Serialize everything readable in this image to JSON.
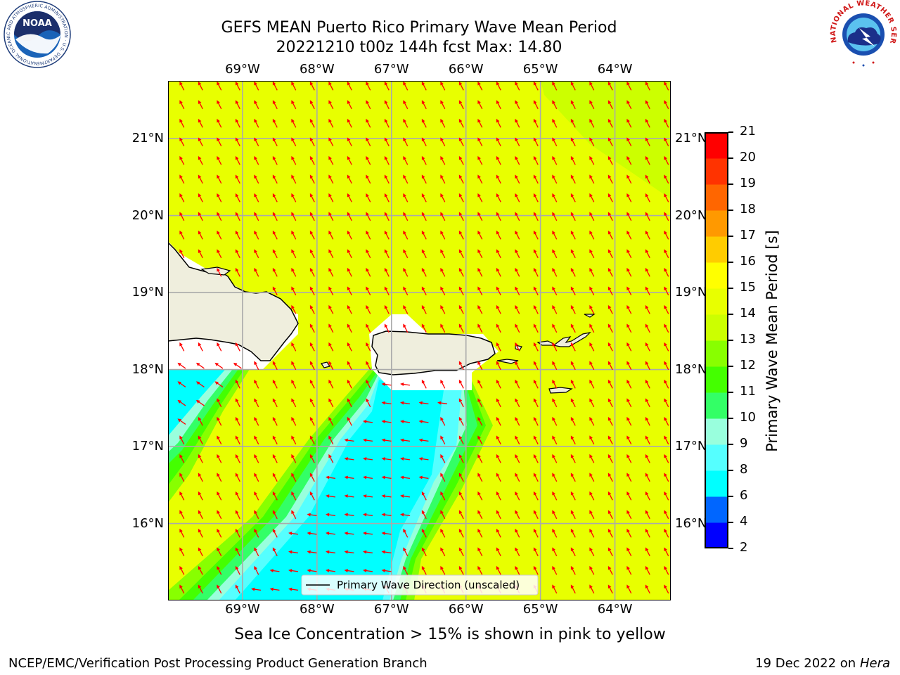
{
  "title": {
    "line1": "GEFS MEAN Puerto Rico Primary Wave Mean Period",
    "line2": "20221210 t00z 144h fcst   Max: 14.80"
  },
  "map": {
    "lon_labels": [
      "69°W",
      "68°W",
      "67°W",
      "66°W",
      "65°W",
      "64°W"
    ],
    "lat_labels": [
      "21°N",
      "20°N",
      "19°N",
      "18°N",
      "17°N",
      "16°N"
    ],
    "lon_range": [
      -70.0,
      -63.25
    ],
    "lat_range": [
      15.0,
      21.75
    ],
    "field_colors": {
      "land": "#efeedd",
      "open_ocean": "#e8ff00",
      "band_13_14": "#ccff00",
      "band_12_13": "#88ff00",
      "band_11_12": "#44ff00",
      "band_10_11": "#33ff66",
      "band_9_10": "#99ffdd",
      "band_8_9": "#55ffff",
      "band_6_8": "#00ffff"
    },
    "arrow_color": "#ff0000",
    "legend_label": "Primary Wave Direction (unscaled)"
  },
  "colorbar": {
    "label": "Primary Wave Mean Period [s]",
    "ticks": [
      "2",
      "4",
      "6",
      "8",
      "9",
      "10",
      "11",
      "12",
      "13",
      "14",
      "15",
      "16",
      "17",
      "18",
      "19",
      "20",
      "21"
    ],
    "colors": [
      "#0000ff",
      "#0066ff",
      "#00ffff",
      "#55ffff",
      "#99ffdd",
      "#33ff66",
      "#44ff00",
      "#88ff00",
      "#ccff00",
      "#e8ff00",
      "#ffff00",
      "#ffcc00",
      "#ff9900",
      "#ff6600",
      "#ff3300",
      "#ff0000"
    ]
  },
  "caption": "Sea Ice Concentration > 15% is shown in pink to yellow",
  "footer": {
    "left": "NCEP/EMC/Verification Post Processing Product Generation Branch",
    "right_date": "19 Dec 2022 on",
    "right_host": "Hera"
  },
  "logos": {
    "noaa_icon": "noaa-logo-icon",
    "noaa_text": "NOAA",
    "noaa_ring": "NATIONAL OCEANIC AND ATMOSPHERIC ADMINISTRATION · U.S. DEPARTMENT OF COMMERCE",
    "nws_icon": "nws-logo-icon",
    "nws_ring": "NATIONAL WEATHER SERVICE"
  }
}
